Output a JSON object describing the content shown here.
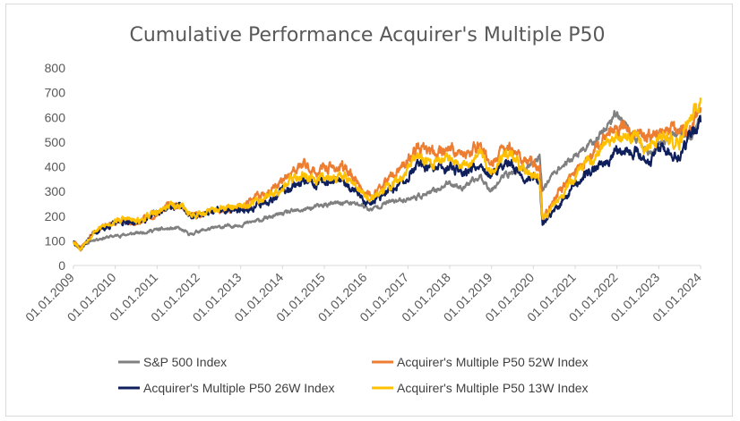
{
  "chart_data": {
    "type": "line",
    "title": "Cumulative Performance Acquirer's Multiple P50",
    "xlabel": "",
    "ylabel": "",
    "ylim": [
      0,
      800
    ],
    "yticks": [
      "0",
      "100",
      "200",
      "300",
      "400",
      "500",
      "600",
      "700",
      "800"
    ],
    "x": [
      "01.01.2009",
      "01.01.2010",
      "01.01.2011",
      "01.01.2012",
      "01.01.2013",
      "01.01.2014",
      "01.01.2015",
      "01.01.2016",
      "01.01.2017",
      "01.01.2018",
      "01.01.2019",
      "01.01.2020",
      "01.01.2021",
      "01.01.2022",
      "01.01.2023",
      "01.01.2024"
    ],
    "grid": false,
    "legend_position": "bottom",
    "series": [
      {
        "name": "S&P 500 Index",
        "color": "#808080",
        "points": [
          [
            2009.0,
            100
          ],
          [
            2009.17,
            75
          ],
          [
            2009.5,
            105
          ],
          [
            2010.0,
            120
          ],
          [
            2010.5,
            130
          ],
          [
            2011.0,
            145
          ],
          [
            2011.5,
            150
          ],
          [
            2011.8,
            125
          ],
          [
            2012.0,
            140
          ],
          [
            2012.5,
            155
          ],
          [
            2013.0,
            165
          ],
          [
            2013.5,
            185
          ],
          [
            2014.0,
            210
          ],
          [
            2014.5,
            225
          ],
          [
            2015.0,
            245
          ],
          [
            2015.5,
            255
          ],
          [
            2015.9,
            245
          ],
          [
            2016.1,
            225
          ],
          [
            2016.5,
            255
          ],
          [
            2017.0,
            270
          ],
          [
            2017.5,
            290
          ],
          [
            2018.0,
            335
          ],
          [
            2018.3,
            315
          ],
          [
            2018.75,
            360
          ],
          [
            2018.98,
            305
          ],
          [
            2019.3,
            365
          ],
          [
            2019.8,
            390
          ],
          [
            2020.0,
            420
          ],
          [
            2020.15,
            440
          ],
          [
            2020.22,
            305
          ],
          [
            2020.5,
            380
          ],
          [
            2021.0,
            440
          ],
          [
            2021.5,
            510
          ],
          [
            2022.0,
            620
          ],
          [
            2022.45,
            510
          ],
          [
            2022.8,
            450
          ],
          [
            2023.0,
            480
          ],
          [
            2023.5,
            550
          ],
          [
            2023.8,
            510
          ],
          [
            2024.0,
            610
          ]
        ]
      },
      {
        "name": "Acquirer's Multiple P50 52W Index",
        "color": "#ED7D31",
        "points": [
          [
            2009.0,
            100
          ],
          [
            2009.17,
            68
          ],
          [
            2009.5,
            140
          ],
          [
            2010.0,
            175
          ],
          [
            2010.3,
            180
          ],
          [
            2010.5,
            170
          ],
          [
            2011.0,
            215
          ],
          [
            2011.3,
            245
          ],
          [
            2011.6,
            240
          ],
          [
            2011.8,
            200
          ],
          [
            2012.0,
            210
          ],
          [
            2012.5,
            225
          ],
          [
            2013.0,
            240
          ],
          [
            2013.5,
            285
          ],
          [
            2014.0,
            340
          ],
          [
            2014.3,
            380
          ],
          [
            2014.5,
            410
          ],
          [
            2014.8,
            375
          ],
          [
            2015.0,
            395
          ],
          [
            2015.5,
            395
          ],
          [
            2015.75,
            350
          ],
          [
            2015.95,
            300
          ],
          [
            2016.1,
            275
          ],
          [
            2016.5,
            340
          ],
          [
            2016.9,
            400
          ],
          [
            2017.2,
            470
          ],
          [
            2017.6,
            460
          ],
          [
            2018.0,
            475
          ],
          [
            2018.4,
            440
          ],
          [
            2018.75,
            500
          ],
          [
            2018.98,
            395
          ],
          [
            2019.3,
            480
          ],
          [
            2019.5,
            475
          ],
          [
            2019.8,
            420
          ],
          [
            2020.0,
            415
          ],
          [
            2020.15,
            400
          ],
          [
            2020.22,
            185
          ],
          [
            2020.5,
            270
          ],
          [
            2021.0,
            380
          ],
          [
            2021.5,
            480
          ],
          [
            2021.8,
            540
          ],
          [
            2022.0,
            560
          ],
          [
            2022.45,
            540
          ],
          [
            2022.8,
            520
          ],
          [
            2023.0,
            545
          ],
          [
            2023.5,
            540
          ],
          [
            2023.8,
            555
          ],
          [
            2024.0,
            640
          ]
        ]
      },
      {
        "name": "Acquirer's Multiple P50 26W Index",
        "color": "#0F1F5C",
        "points": [
          [
            2009.0,
            100
          ],
          [
            2009.17,
            65
          ],
          [
            2009.5,
            135
          ],
          [
            2010.0,
            170
          ],
          [
            2010.3,
            180
          ],
          [
            2010.5,
            170
          ],
          [
            2011.0,
            210
          ],
          [
            2011.3,
            240
          ],
          [
            2011.6,
            238
          ],
          [
            2011.8,
            195
          ],
          [
            2012.0,
            205
          ],
          [
            2012.5,
            220
          ],
          [
            2013.0,
            220
          ],
          [
            2013.5,
            250
          ],
          [
            2014.0,
            300
          ],
          [
            2014.3,
            330
          ],
          [
            2014.5,
            340
          ],
          [
            2014.8,
            320
          ],
          [
            2015.0,
            340
          ],
          [
            2015.5,
            335
          ],
          [
            2015.75,
            305
          ],
          [
            2015.95,
            265
          ],
          [
            2016.1,
            250
          ],
          [
            2016.5,
            295
          ],
          [
            2016.9,
            340
          ],
          [
            2017.2,
            405
          ],
          [
            2017.6,
            385
          ],
          [
            2018.0,
            400
          ],
          [
            2018.4,
            380
          ],
          [
            2018.75,
            420
          ],
          [
            2018.98,
            350
          ],
          [
            2019.3,
            415
          ],
          [
            2019.5,
            405
          ],
          [
            2019.8,
            350
          ],
          [
            2020.0,
            365
          ],
          [
            2020.15,
            340
          ],
          [
            2020.22,
            170
          ],
          [
            2020.5,
            220
          ],
          [
            2021.0,
            330
          ],
          [
            2021.5,
            400
          ],
          [
            2021.8,
            440
          ],
          [
            2022.0,
            470
          ],
          [
            2022.45,
            465
          ],
          [
            2022.8,
            420
          ],
          [
            2023.0,
            480
          ],
          [
            2023.5,
            430
          ],
          [
            2023.8,
            545
          ],
          [
            2024.0,
            580
          ]
        ]
      },
      {
        "name": "Acquirer's Multiple P50 13W Index",
        "color": "#FFC000",
        "points": [
          [
            2009.0,
            100
          ],
          [
            2009.17,
            68
          ],
          [
            2009.5,
            140
          ],
          [
            2010.0,
            180
          ],
          [
            2010.3,
            190
          ],
          [
            2010.5,
            175
          ],
          [
            2011.0,
            215
          ],
          [
            2011.3,
            245
          ],
          [
            2011.6,
            240
          ],
          [
            2011.8,
            205
          ],
          [
            2012.0,
            210
          ],
          [
            2012.5,
            228
          ],
          [
            2013.0,
            235
          ],
          [
            2013.5,
            270
          ],
          [
            2014.0,
            320
          ],
          [
            2014.3,
            355
          ],
          [
            2014.5,
            370
          ],
          [
            2014.8,
            345
          ],
          [
            2015.0,
            360
          ],
          [
            2015.5,
            360
          ],
          [
            2015.75,
            325
          ],
          [
            2015.95,
            285
          ],
          [
            2016.1,
            265
          ],
          [
            2016.5,
            315
          ],
          [
            2016.9,
            360
          ],
          [
            2017.2,
            440
          ],
          [
            2017.6,
            415
          ],
          [
            2018.0,
            440
          ],
          [
            2018.4,
            410
          ],
          [
            2018.75,
            460
          ],
          [
            2018.98,
            370
          ],
          [
            2019.3,
            450
          ],
          [
            2019.5,
            440
          ],
          [
            2019.8,
            375
          ],
          [
            2020.0,
            380
          ],
          [
            2020.15,
            360
          ],
          [
            2020.22,
            180
          ],
          [
            2020.5,
            245
          ],
          [
            2021.0,
            360
          ],
          [
            2021.5,
            450
          ],
          [
            2021.8,
            500
          ],
          [
            2022.0,
            520
          ],
          [
            2022.45,
            515
          ],
          [
            2022.8,
            470
          ],
          [
            2023.0,
            520
          ],
          [
            2023.5,
            500
          ],
          [
            2023.8,
            610
          ],
          [
            2024.0,
            680
          ]
        ]
      }
    ]
  }
}
